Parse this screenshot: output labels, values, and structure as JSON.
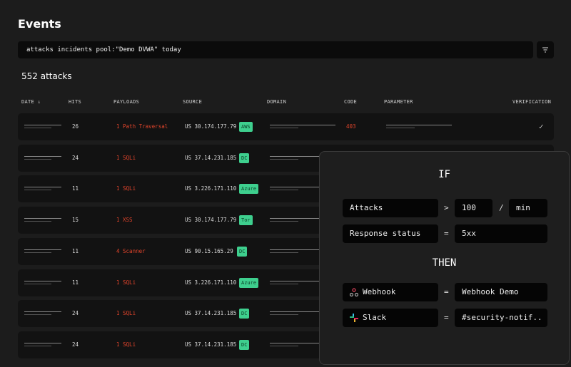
{
  "title": "Events",
  "search": {
    "value": "attacks incidents pool:\"Demo DVWA\" today"
  },
  "count": "552 attacks",
  "columns": {
    "date": "DATE ↓",
    "hits": "HITS",
    "payloads": "PAYLOADS",
    "source": "SOURCE",
    "domain": "DOMAIN",
    "code": "CODE",
    "parameter": "PARAMETER",
    "verification": "VERIFICATION"
  },
  "rows": [
    {
      "hits": "26",
      "payload": "1 Path Traversal",
      "source": "US 30.174.177.79",
      "tag": "AWS",
      "code": "403",
      "verified": "✓"
    },
    {
      "hits": "24",
      "payload": "1 SQLi",
      "source": "US 37.14.231.185",
      "tag": "DC"
    },
    {
      "hits": "11",
      "payload": "1 SQLi",
      "source": "US 3.226.171.110",
      "tag": "Azure"
    },
    {
      "hits": "15",
      "payload": "1 XSS",
      "source": "US 30.174.177.79",
      "tag": "Tor"
    },
    {
      "hits": "11",
      "payload": "4 Scanner",
      "source": "US 90.15.165.29",
      "tag": "DC"
    },
    {
      "hits": "11",
      "payload": "1 SQLi",
      "source": "US 3.226.171.110",
      "tag": "Azure"
    },
    {
      "hits": "24",
      "payload": "1 SQLi",
      "source": "US 37.14.231.185",
      "tag": "DC"
    },
    {
      "hits": "24",
      "payload": "1 SQLi",
      "source": "US 37.14.231.185",
      "tag": "DC"
    }
  ],
  "trigger": {
    "if": "IF",
    "then": "THEN",
    "cond1": {
      "field": "Attacks",
      "op": ">",
      "value": "100",
      "sep": "/",
      "unit": "min"
    },
    "cond2": {
      "field": "Response status",
      "op": "=",
      "value": "5xx"
    },
    "act1": {
      "field": "Webhook",
      "op": "=",
      "value": "Webhook Demo",
      "icon": "webhook-icon"
    },
    "act2": {
      "field": "Slack",
      "op": "=",
      "value": "#security-notif..",
      "icon": "slack-icon"
    }
  },
  "colors": {
    "payload": "#e0442b",
    "tag": "#3ecf8e"
  }
}
